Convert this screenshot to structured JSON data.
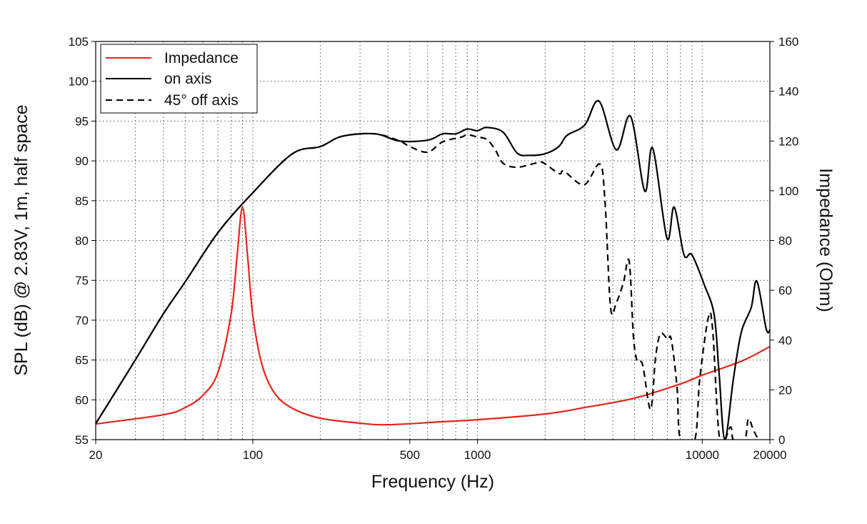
{
  "chart_data": {
    "type": "line",
    "xlabel": "Frequency (Hz)",
    "ylabel": "SPL (dB) @ 2.83V, 1m, half space",
    "y2label": "Impedance (Ohm)",
    "xscale": "log",
    "xlim": [
      20,
      20000
    ],
    "ylim": [
      55,
      105
    ],
    "y2lim": [
      0,
      160
    ],
    "xticks": [
      20,
      100,
      500,
      1000,
      10000,
      20000
    ],
    "xtick_labels": [
      "20",
      "100",
      "500",
      "1000",
      "10000",
      "20000"
    ],
    "yticks": [
      55,
      60,
      65,
      70,
      75,
      80,
      85,
      90,
      95,
      100,
      105
    ],
    "yticks_labels": [
      "55",
      "60",
      "65",
      "70",
      "75",
      "80",
      "85",
      "90",
      "95",
      "100",
      "105"
    ],
    "y2ticks": [
      0,
      20,
      40,
      60,
      80,
      100,
      120,
      140,
      160
    ],
    "y2ticks_labels": [
      "0",
      "20",
      "40",
      "60",
      "80",
      "100",
      "120",
      "140",
      "160"
    ],
    "grid": true,
    "legend_position": "top-left",
    "series": [
      {
        "name": "Impedance",
        "axis": "right",
        "color": "#e8231b",
        "style": "solid",
        "x": [
          20,
          40,
          50,
          60,
          70,
          80,
          85,
          90,
          95,
          100,
          110,
          125,
          150,
          200,
          300,
          400,
          700,
          1000,
          2000,
          3000,
          5000,
          8000,
          10000,
          15000,
          20000
        ],
        "y": [
          6.3,
          10,
          12.9,
          17.8,
          27,
          50,
          73,
          93.4,
          73,
          50,
          30,
          18.7,
          12.6,
          8.6,
          6.6,
          6,
          7.2,
          8,
          10.3,
          12.9,
          16.7,
          22.4,
          25.9,
          31.6,
          37.4
        ]
      },
      {
        "name": "on axis",
        "axis": "left",
        "color": "#000000",
        "style": "solid",
        "x": [
          20,
          30,
          40,
          50,
          70,
          100,
          150,
          200,
          250,
          350,
          450,
          600,
          700,
          800,
          900,
          1000,
          1100,
          1300,
          1500,
          1700,
          2000,
          2300,
          2500,
          3000,
          3476,
          4146,
          4798,
          5552,
          6020,
          6968,
          7500,
          8300,
          9000,
          10260,
          11300,
          11880,
          12600,
          13760,
          14920,
          16520,
          17500,
          19270,
          20000
        ],
        "y": [
          57,
          65,
          70.8,
          74.8,
          81,
          86,
          90.9,
          91.8,
          93.1,
          93.4,
          92.5,
          92.6,
          93.4,
          93.4,
          94,
          93.8,
          94.2,
          93.6,
          91,
          90.7,
          90.9,
          91.8,
          93.2,
          94.5,
          97.5,
          91.4,
          95.6,
          86.2,
          91.6,
          80.3,
          84.2,
          78.2,
          78.2,
          74.3,
          70.7,
          63.5,
          55,
          62.6,
          68.5,
          71.6,
          74.9,
          68.9,
          68.8
        ]
      },
      {
        "name": "45° off axis",
        "axis": "left",
        "color": "#000000",
        "style": "dashed",
        "x": [
          20,
          30,
          40,
          50,
          70,
          100,
          150,
          200,
          250,
          350,
          450,
          500,
          600,
          700,
          850,
          900,
          1000,
          1100,
          1200,
          1300,
          1500,
          1800,
          1950,
          2308,
          2430,
          2980,
          3500,
          3690,
          3910,
          4146,
          4460,
          4730,
          4940,
          5130,
          5430,
          5890,
          6200,
          6520,
          7020,
          7280,
          7720,
          8000,
          9270,
          9750,
          10640,
          11120,
          11970,
          13370,
          13760,
          15460,
          16040,
          16900,
          17780
        ],
        "y": [
          57,
          65,
          70.8,
          74.8,
          81,
          86,
          90.9,
          91.8,
          93.1,
          93.4,
          92.5,
          91.8,
          91.1,
          92.4,
          93,
          93.3,
          93,
          92.7,
          91.4,
          89.7,
          89.2,
          89.7,
          89.8,
          88.4,
          88.7,
          87,
          89.6,
          85.1,
          71.6,
          72.2,
          74.7,
          77.4,
          68,
          64.9,
          64.4,
          58.8,
          65.3,
          68.3,
          67.6,
          67.6,
          61.7,
          55,
          55,
          62.6,
          70.3,
          68.9,
          55,
          56.6,
          55,
          55,
          57.6,
          56.2,
          55
        ]
      }
    ]
  }
}
